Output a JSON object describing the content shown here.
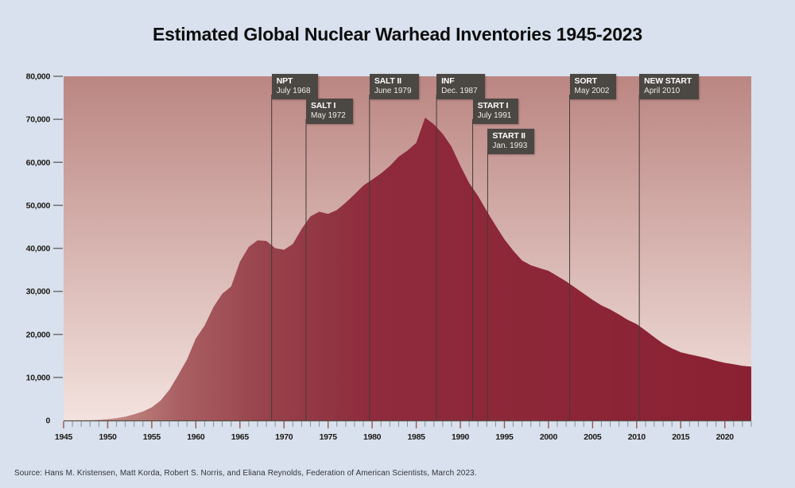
{
  "page": {
    "background": "#d8e1ed"
  },
  "title": "Estimated Global Nuclear Warhead Inventories 1945-2023",
  "source": "Source: Hans M. Kristensen, Matt Korda, Robert S. Norris, and Eliana Reynolds, Federation of American Scientists, March 2023.",
  "chart_data": {
    "type": "area",
    "title": "Estimated Global Nuclear Warhead Inventories 1945-2023",
    "xlabel": "",
    "ylabel": "",
    "xlim": [
      1945,
      2023
    ],
    "ylim": [
      0,
      80000
    ],
    "grid": false,
    "legend": "none",
    "x_tick_label_years": [
      1945,
      1950,
      1955,
      1960,
      1965,
      1970,
      1975,
      1980,
      1985,
      1990,
      1995,
      2000,
      2005,
      2010,
      2015,
      2020
    ],
    "y_ticks": [
      0,
      10000,
      20000,
      30000,
      40000,
      50000,
      60000,
      70000,
      80000
    ],
    "y_tick_labels": [
      "0",
      "10,000",
      "20,000",
      "30,000",
      "40,000",
      "50,000",
      "60,000",
      "70,000",
      "80,000"
    ],
    "years": [
      1945,
      1946,
      1947,
      1948,
      1949,
      1950,
      1951,
      1952,
      1953,
      1954,
      1955,
      1956,
      1957,
      1958,
      1959,
      1960,
      1961,
      1962,
      1963,
      1964,
      1965,
      1966,
      1967,
      1968,
      1969,
      1970,
      1971,
      1972,
      1973,
      1974,
      1975,
      1976,
      1977,
      1978,
      1979,
      1980,
      1981,
      1982,
      1983,
      1984,
      1985,
      1986,
      1987,
      1988,
      1989,
      1990,
      1991,
      1992,
      1993,
      1994,
      1995,
      1996,
      1997,
      1998,
      1999,
      2000,
      2001,
      2002,
      2003,
      2004,
      2005,
      2006,
      2007,
      2008,
      2009,
      2010,
      2011,
      2012,
      2013,
      2014,
      2015,
      2016,
      2017,
      2018,
      2019,
      2020,
      2021,
      2022,
      2023
    ],
    "values": [
      2,
      9,
      13,
      50,
      171,
      299,
      539,
      895,
      1436,
      2063,
      3057,
      4618,
      7124,
      10577,
      14180,
      19054,
      22064,
      26392,
      29459,
      31139,
      36912,
      40343,
      41864,
      41735,
      40035,
      39691,
      41024,
      44502,
      47454,
      48524,
      48019,
      48928,
      50648,
      52555,
      54613,
      55981,
      57406,
      59141,
      61306,
      62717,
      64519,
      70374,
      68835,
      66611,
      63646,
      59239,
      55182,
      52209,
      48672,
      45295,
      42111,
      39465,
      37192,
      36077,
      35399,
      34792,
      33574,
      32332,
      30888,
      29461,
      28035,
      26760,
      25787,
      24637,
      23375,
      22416,
      20907,
      19357,
      17872,
      16733,
      15850,
      15350,
      14930,
      14465,
      13865,
      13400,
      13080,
      12705,
      12512
    ],
    "annotations": [
      {
        "label": "NPT",
        "date": "July 1968",
        "year": 1968.6,
        "row": 0
      },
      {
        "label": "SALT I",
        "date": "May 1972",
        "year": 1972.5,
        "row": 1
      },
      {
        "label": "SALT II",
        "date": "June 1979",
        "year": 1979.7,
        "row": 0
      },
      {
        "label": "INF",
        "date": "Dec. 1987",
        "year": 1987.3,
        "row": 0
      },
      {
        "label": "START I",
        "date": "July 1991",
        "year": 1991.4,
        "row": 1
      },
      {
        "label": "START II",
        "date": "Jan. 1993",
        "year": 1993.1,
        "row": 2
      },
      {
        "label": "SORT",
        "date": "May 2002",
        "year": 2002.4,
        "row": 0
      },
      {
        "label": "NEW START",
        "date": "April 2010",
        "year": 2010.3,
        "row": 0
      }
    ],
    "colors": {
      "page_bg": "#d8e1ed",
      "plot_bg_top": "#bb8682",
      "plot_bg_bottom": "#f3e2de",
      "area_stops": [
        [
          0.0,
          "#d6b0a9"
        ],
        [
          0.07,
          "#c28a84"
        ],
        [
          0.17,
          "#a95f62"
        ],
        [
          0.3,
          "#97414b"
        ],
        [
          0.45,
          "#8e2b3c"
        ],
        [
          1.0,
          "#8a2133"
        ]
      ],
      "treaty_line": "#403b39",
      "annotation_box": "#4b4743",
      "axis_line": "#57504c",
      "minor_tick": "#8e8e8e",
      "major_tick": "#9b544e",
      "tick_dash": "#6f6f6f",
      "label_text": "#1d1916"
    }
  }
}
